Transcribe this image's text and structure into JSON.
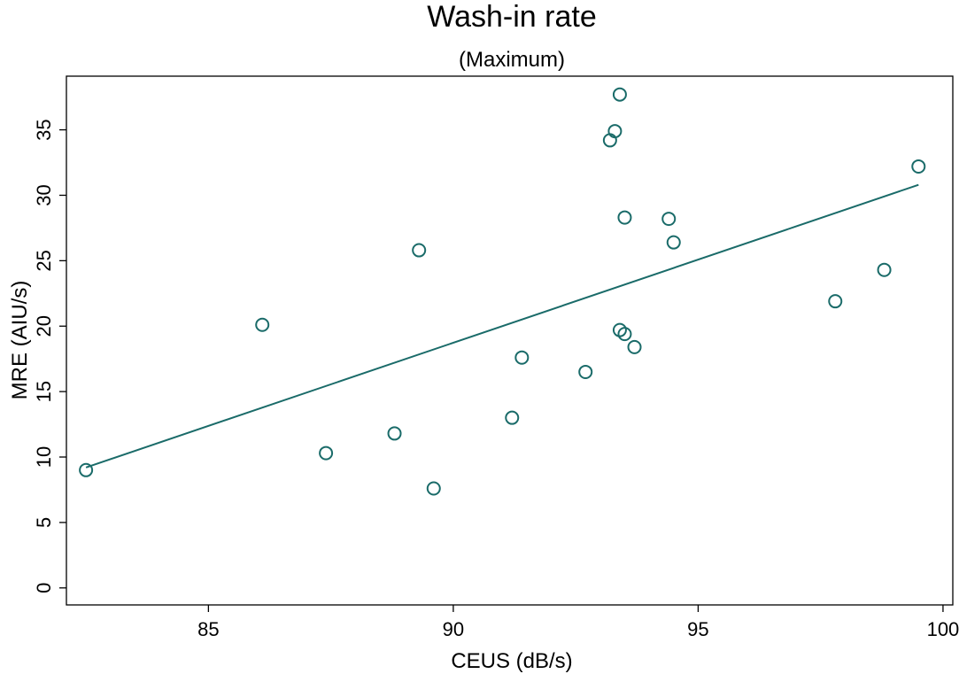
{
  "chart_data": {
    "type": "scatter",
    "title": "Wash-in rate",
    "subtitle": "(Maximum)",
    "xlabel": "CEUS (dB/s)",
    "ylabel": "MRE (AIU/s)",
    "xlim": [
      82.1,
      100.2
    ],
    "ylim": [
      -1.3,
      39.1
    ],
    "xticks": [
      85,
      90,
      95,
      100
    ],
    "yticks": [
      0,
      5,
      10,
      15,
      20,
      25,
      30,
      35
    ],
    "grid": false,
    "legend": "none",
    "color": "#1a6b69",
    "points": [
      {
        "x": 82.5,
        "y": 9.0
      },
      {
        "x": 86.1,
        "y": 20.1
      },
      {
        "x": 87.4,
        "y": 10.3
      },
      {
        "x": 88.8,
        "y": 11.8
      },
      {
        "x": 89.3,
        "y": 25.8
      },
      {
        "x": 89.6,
        "y": 7.6
      },
      {
        "x": 91.2,
        "y": 13.0
      },
      {
        "x": 91.4,
        "y": 17.6
      },
      {
        "x": 92.7,
        "y": 16.5
      },
      {
        "x": 93.2,
        "y": 34.2
      },
      {
        "x": 93.3,
        "y": 34.9
      },
      {
        "x": 93.4,
        "y": 37.7
      },
      {
        "x": 93.4,
        "y": 19.7
      },
      {
        "x": 93.5,
        "y": 19.4
      },
      {
        "x": 93.5,
        "y": 28.3
      },
      {
        "x": 93.7,
        "y": 18.4
      },
      {
        "x": 94.4,
        "y": 28.2
      },
      {
        "x": 94.5,
        "y": 26.4
      },
      {
        "x": 97.8,
        "y": 21.9
      },
      {
        "x": 98.8,
        "y": 24.3
      },
      {
        "x": 99.5,
        "y": 32.2
      }
    ],
    "fit_line": {
      "type": "linear",
      "x": [
        82.5,
        99.5
      ],
      "y": [
        9.2,
        30.8
      ]
    }
  }
}
